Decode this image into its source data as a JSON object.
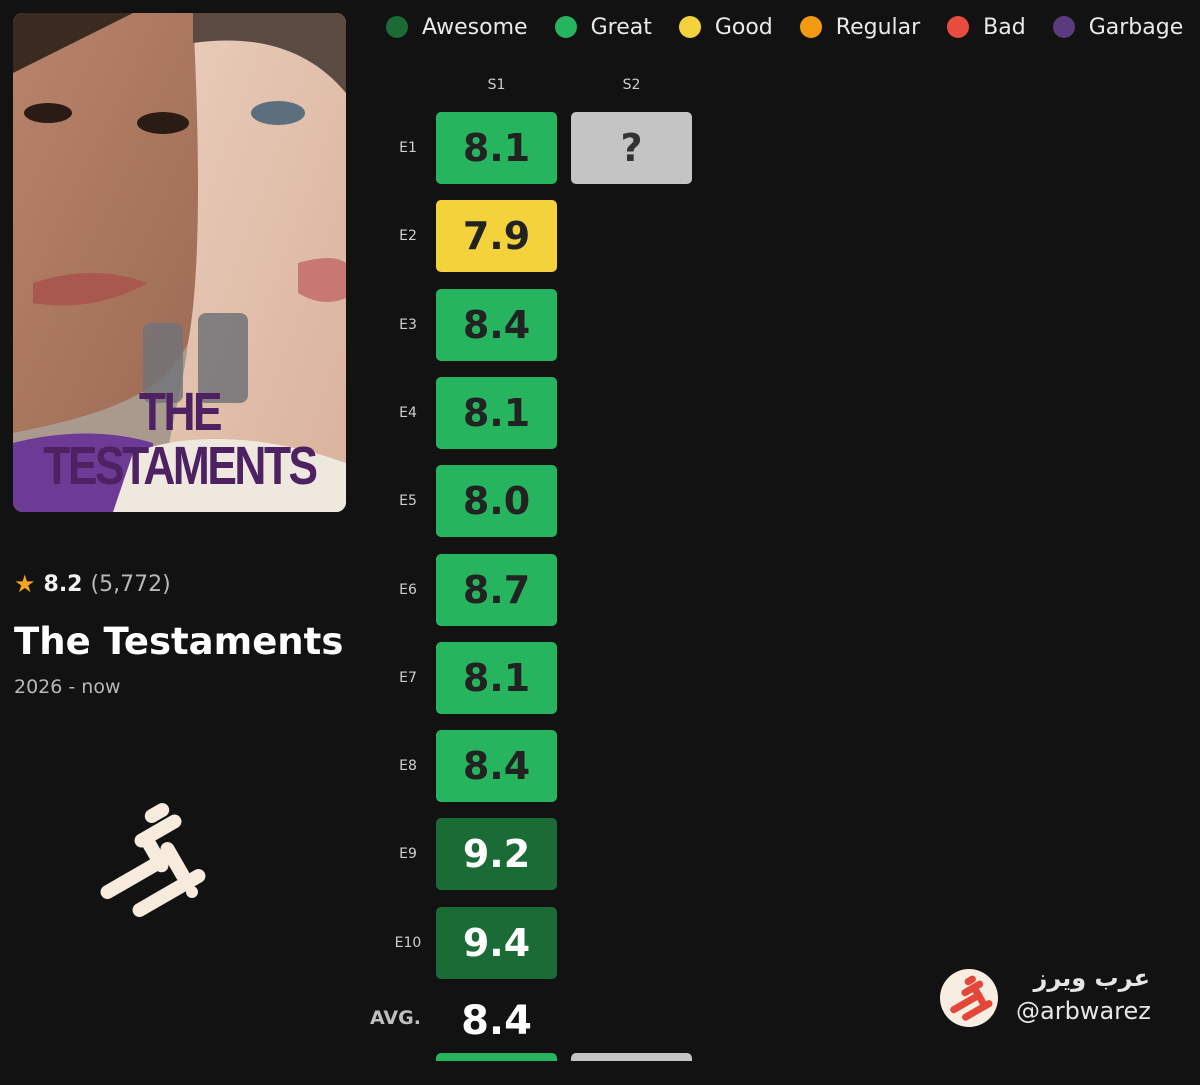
{
  "legend": [
    {
      "label": "Awesome",
      "color": "#1b6b36"
    },
    {
      "label": "Great",
      "color": "#27b45f"
    },
    {
      "label": "Good",
      "color": "#f3d23b"
    },
    {
      "label": "Regular",
      "color": "#f29b11"
    },
    {
      "label": "Bad",
      "color": "#e74c3c"
    },
    {
      "label": "Garbage",
      "color": "#5c3a7e"
    }
  ],
  "poster": {
    "title": "THE TESTAMENTS"
  },
  "show": {
    "rating": "8.2",
    "votes": "(5,772)",
    "title": "The Testaments",
    "years": "2026 - now"
  },
  "grid": {
    "seasons": [
      "S1",
      "S2"
    ],
    "episodes": [
      "E1",
      "E2",
      "E3",
      "E4",
      "E5",
      "E6",
      "E7",
      "E8",
      "E9",
      "E10"
    ],
    "ratings": [
      {
        "value": "8.1",
        "category": "Great"
      },
      {
        "value": "7.9",
        "category": "Good"
      },
      {
        "value": "8.4",
        "category": "Great"
      },
      {
        "value": "8.1",
        "category": "Great"
      },
      {
        "value": "8.0",
        "category": "Great"
      },
      {
        "value": "8.7",
        "category": "Great"
      },
      {
        "value": "8.1",
        "category": "Great"
      },
      {
        "value": "8.4",
        "category": "Great"
      },
      {
        "value": "9.2",
        "category": "Awesome"
      },
      {
        "value": "9.4",
        "category": "Awesome"
      }
    ],
    "season2_first": "?",
    "unknown_color": "#c4c4c4",
    "avg_label": "AVG.",
    "avg_value": "8.4"
  },
  "watermark": {
    "arabic": "عرب ويرز",
    "handle": "@arbwarez",
    "logo_color": "#e4463a"
  }
}
